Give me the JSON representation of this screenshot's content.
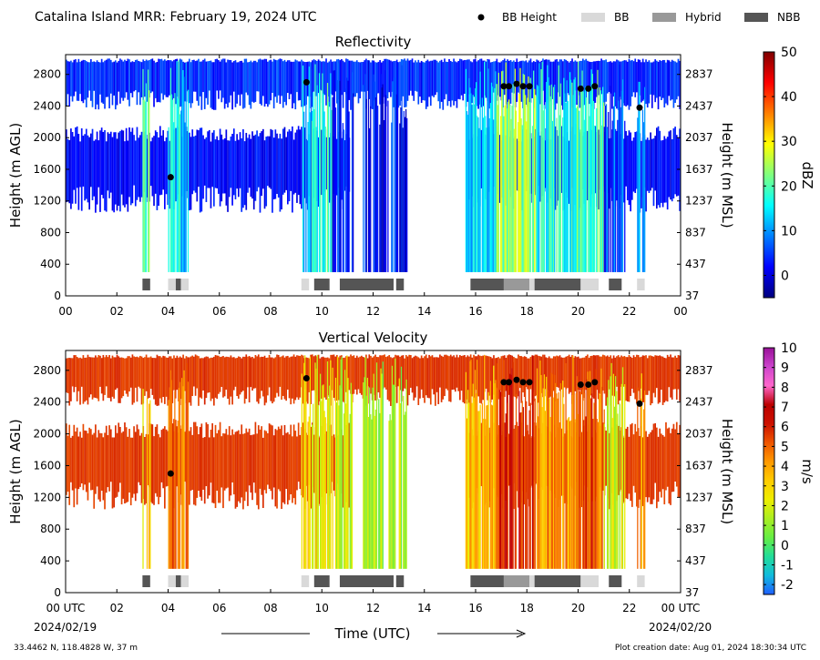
{
  "header": {
    "title": "Catalina Island MRR:  February 19, 2024 UTC",
    "legend": [
      {
        "label": "BB Height",
        "kind": "dot",
        "color": "#000000"
      },
      {
        "label": "BB",
        "kind": "box",
        "color": "#d9d9d9"
      },
      {
        "label": "Hybrid",
        "kind": "box",
        "color": "#999999"
      },
      {
        "label": "NBB",
        "kind": "box",
        "color": "#555555"
      }
    ]
  },
  "footer": {
    "location": "33.4462 N, 118.4828 W, 37 m",
    "creation": "Plot creation date: Aug 01, 2024 18:30:34 UTC",
    "xlabel": "Time (UTC)",
    "start_date": "2024/02/19",
    "end_date": "2024/02/20"
  },
  "chart_data": [
    {
      "type": "heatmap",
      "title": "Reflectivity",
      "ylabel": "Height (m AGL)",
      "ylabel_right": "Height (m MSL)",
      "xlabel": "Time (UTC)",
      "xlim": [
        0,
        24
      ],
      "ylim": [
        0,
        3050
      ],
      "x_tick_labels": [
        "00",
        "02",
        "04",
        "06",
        "08",
        "10",
        "12",
        "14",
        "16",
        "18",
        "20",
        "22",
        "00"
      ],
      "y_ticks": [
        0,
        400,
        800,
        1200,
        1600,
        2000,
        2400,
        2800
      ],
      "y_ticks_right": [
        "37",
        "437",
        "837",
        "1237",
        "1637",
        "2037",
        "2437",
        "2837"
      ],
      "colorbar": {
        "label": "dBZ",
        "min": -5,
        "max": 50,
        "ticks": [
          0,
          10,
          20,
          30,
          40,
          50
        ],
        "colors": [
          "#00007f",
          "#0000ff",
          "#007fff",
          "#00ffff",
          "#7fff7f",
          "#ffff00",
          "#ff7f00",
          "#ff0000",
          "#7f0000"
        ]
      },
      "bb_height": [
        [
          4.1,
          1500
        ],
        [
          9.4,
          2700
        ],
        [
          17.1,
          2650
        ],
        [
          17.3,
          2650
        ],
        [
          17.6,
          2680
        ],
        [
          17.85,
          2650
        ],
        [
          18.1,
          2650
        ],
        [
          20.1,
          2620
        ],
        [
          20.4,
          2620
        ],
        [
          20.65,
          2650
        ],
        [
          22.4,
          2380
        ]
      ],
      "bb_type_segments": [
        {
          "start": 3.0,
          "end": 3.3,
          "type": "NBB"
        },
        {
          "start": 4.0,
          "end": 4.3,
          "type": "BB"
        },
        {
          "start": 4.3,
          "end": 4.5,
          "type": "NBB"
        },
        {
          "start": 4.5,
          "end": 4.8,
          "type": "BB"
        },
        {
          "start": 9.2,
          "end": 9.5,
          "type": "BB"
        },
        {
          "start": 9.7,
          "end": 10.3,
          "type": "NBB"
        },
        {
          "start": 10.7,
          "end": 12.8,
          "type": "NBB"
        },
        {
          "start": 12.9,
          "end": 13.2,
          "type": "NBB"
        },
        {
          "start": 15.8,
          "end": 17.1,
          "type": "NBB"
        },
        {
          "start": 17.1,
          "end": 18.1,
          "type": "Hybrid"
        },
        {
          "start": 18.1,
          "end": 18.3,
          "type": "BB"
        },
        {
          "start": 18.3,
          "end": 20.1,
          "type": "NBB"
        },
        {
          "start": 20.1,
          "end": 20.8,
          "type": "BB"
        },
        {
          "start": 21.2,
          "end": 21.7,
          "type": "NBB"
        },
        {
          "start": 22.3,
          "end": 22.6,
          "type": "BB"
        }
      ]
    },
    {
      "type": "heatmap",
      "title": "Vertical Velocity",
      "ylabel": "Height (m AGL)",
      "ylabel_right": "Height (m MSL)",
      "xlabel": "Time (UTC)",
      "xlim": [
        0,
        24
      ],
      "ylim": [
        0,
        3050
      ],
      "x_tick_labels": [
        "00 UTC",
        "02",
        "04",
        "06",
        "08",
        "10",
        "12",
        "14",
        "16",
        "18",
        "20",
        "22",
        "00 UTC"
      ],
      "y_ticks": [
        0,
        400,
        800,
        1200,
        1600,
        2000,
        2400,
        2800
      ],
      "y_ticks_right": [
        "37",
        "437",
        "837",
        "1237",
        "1637",
        "2037",
        "2437",
        "2837"
      ],
      "colorbar": {
        "label": "m/s",
        "min": -2.5,
        "max": 10,
        "ticks": [
          -2,
          -1,
          0,
          1,
          2,
          3,
          4,
          5,
          6,
          7,
          8,
          9,
          10
        ],
        "colors": [
          "#1f5fff",
          "#11bbdd",
          "#22dd99",
          "#66ee44",
          "#aaee22",
          "#eeee00",
          "#ffcc00",
          "#ff9900",
          "#ee5500",
          "#cc1100",
          "#bb0000",
          "#ff66cc",
          "#cc44cc",
          "#991199"
        ]
      },
      "bb_height": [
        [
          4.1,
          1500
        ],
        [
          9.4,
          2700
        ],
        [
          17.1,
          2650
        ],
        [
          17.3,
          2650
        ],
        [
          17.6,
          2680
        ],
        [
          17.85,
          2650
        ],
        [
          18.1,
          2650
        ],
        [
          20.1,
          2620
        ],
        [
          20.4,
          2620
        ],
        [
          20.65,
          2650
        ],
        [
          22.4,
          2380
        ]
      ],
      "bb_type_segments": [
        {
          "start": 3.0,
          "end": 3.3,
          "type": "NBB"
        },
        {
          "start": 4.0,
          "end": 4.3,
          "type": "BB"
        },
        {
          "start": 4.3,
          "end": 4.5,
          "type": "NBB"
        },
        {
          "start": 4.5,
          "end": 4.8,
          "type": "BB"
        },
        {
          "start": 9.2,
          "end": 9.5,
          "type": "BB"
        },
        {
          "start": 9.7,
          "end": 10.3,
          "type": "NBB"
        },
        {
          "start": 10.7,
          "end": 12.8,
          "type": "NBB"
        },
        {
          "start": 12.9,
          "end": 13.2,
          "type": "NBB"
        },
        {
          "start": 15.8,
          "end": 17.1,
          "type": "NBB"
        },
        {
          "start": 17.1,
          "end": 18.1,
          "type": "Hybrid"
        },
        {
          "start": 18.1,
          "end": 18.3,
          "type": "BB"
        },
        {
          "start": 18.3,
          "end": 20.1,
          "type": "NBB"
        },
        {
          "start": 20.1,
          "end": 20.8,
          "type": "BB"
        },
        {
          "start": 21.2,
          "end": 21.7,
          "type": "NBB"
        },
        {
          "start": 22.3,
          "end": 22.6,
          "type": "BB"
        }
      ]
    }
  ]
}
